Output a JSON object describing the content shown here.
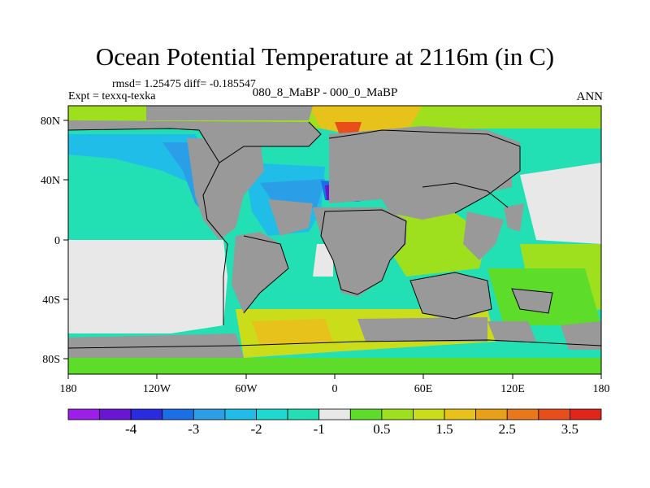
{
  "title": "Ocean Potential Temperature at 2116m (in C)",
  "stats": "rmsd= 1.25475  diff= -0.185547",
  "experiment": "Expt = texxq-texka",
  "subtitle": "080_8_MaBP - 000_0_MaBP",
  "season": "ANN",
  "x_ticks": [
    "180",
    "120W",
    "60W",
    "0",
    "60E",
    "120E",
    "180"
  ],
  "y_ticks": [
    "80N",
    "40N",
    "0",
    "40S",
    "80S"
  ],
  "colorbar": {
    "colors": [
      "#9b1fe8",
      "#6a14d6",
      "#2a2ae0",
      "#1a6ee6",
      "#2b9ee8",
      "#1fbde8",
      "#1fd8d0",
      "#22e0b4",
      "#e8e8e8",
      "#5ddc2a",
      "#9ee01e",
      "#cbdc1a",
      "#e6c21a",
      "#e8a01a",
      "#e8781a",
      "#e84e1a",
      "#e0261a"
    ],
    "labels": [
      "-4",
      "-3",
      "-2",
      "-1",
      "0.5",
      "1.5",
      "2.5",
      "3.5"
    ]
  },
  "legend_colors": {
    "land": "#999999",
    "near_zero": "#e8e8e8"
  }
}
